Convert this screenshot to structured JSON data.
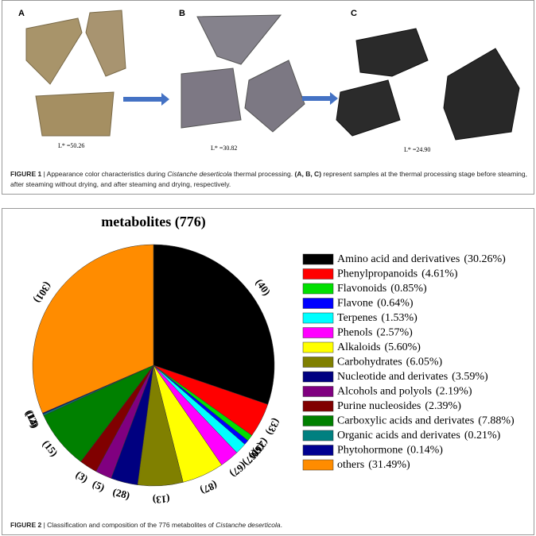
{
  "figure1": {
    "panels": [
      {
        "letter": "A",
        "lstar": "L* =50.26"
      },
      {
        "letter": "B",
        "lstar": "L* =30.82"
      },
      {
        "letter": "C",
        "lstar": "L* =24.90"
      }
    ],
    "caption": [
      "FIGURE 1",
      " | Appearance color characteristics during ",
      "Cistanche deserticola",
      " thermal processing. ",
      "(A, B, C)",
      " represent samples at the thermal processing stage before steaming, after steaming without drying, and after steaming and drying, respectively."
    ]
  },
  "chart_data": {
    "type": "pie",
    "title": "metabolites (776)",
    "categories": [
      "Amino acid and derivatives",
      "Phenylpropanoids",
      "Flavonoids",
      "Flavone",
      "Terpenes",
      "Phenols",
      "Alkaloids",
      "Carbohydrates",
      "Nucleotide and derivates",
      "Alcohols and polyols",
      "Purine nucleosides",
      "Carboxylic acids and derivates",
      "Organic acids and derivates",
      "Phytohormone",
      "others"
    ],
    "values": [
      30.26,
      4.61,
      0.85,
      0.64,
      1.53,
      2.57,
      5.6,
      6.05,
      3.59,
      2.19,
      2.39,
      7.88,
      0.21,
      0.14,
      31.49
    ],
    "value_labels": [
      "(30.26%)",
      "(4.61%)",
      "(0.85%)",
      "(0.64%)",
      "(1.53%)",
      "(2.57%)",
      "(5.60%)",
      "(6.05%)",
      "(3.59%)",
      "(2.19%)",
      "(2.39%)",
      "(7.88%)",
      "(0.21%)",
      "(0.14%)",
      "(31.49%)"
    ],
    "slice_labels": [
      "(40)",
      "(33)",
      "(23)",
      "(68)",
      "(67)",
      "(67)",
      "(87)",
      "(13)",
      "(28)",
      "(5)",
      "(3)",
      "(15)",
      "(14)",
      "(12)",
      "(301)"
    ],
    "colors": [
      "#000000",
      "#ff0000",
      "#00e000",
      "#0000ff",
      "#00ffff",
      "#ff00ff",
      "#ffff00",
      "#808000",
      "#000080",
      "#800080",
      "#800000",
      "#008000",
      "#008080",
      "#000090",
      "#ff8c00"
    ]
  },
  "figure2": {
    "caption": [
      "FIGURE 2",
      " | Classification and composition of the 776 metabolites of ",
      "Cistanche deserticola",
      "."
    ]
  }
}
